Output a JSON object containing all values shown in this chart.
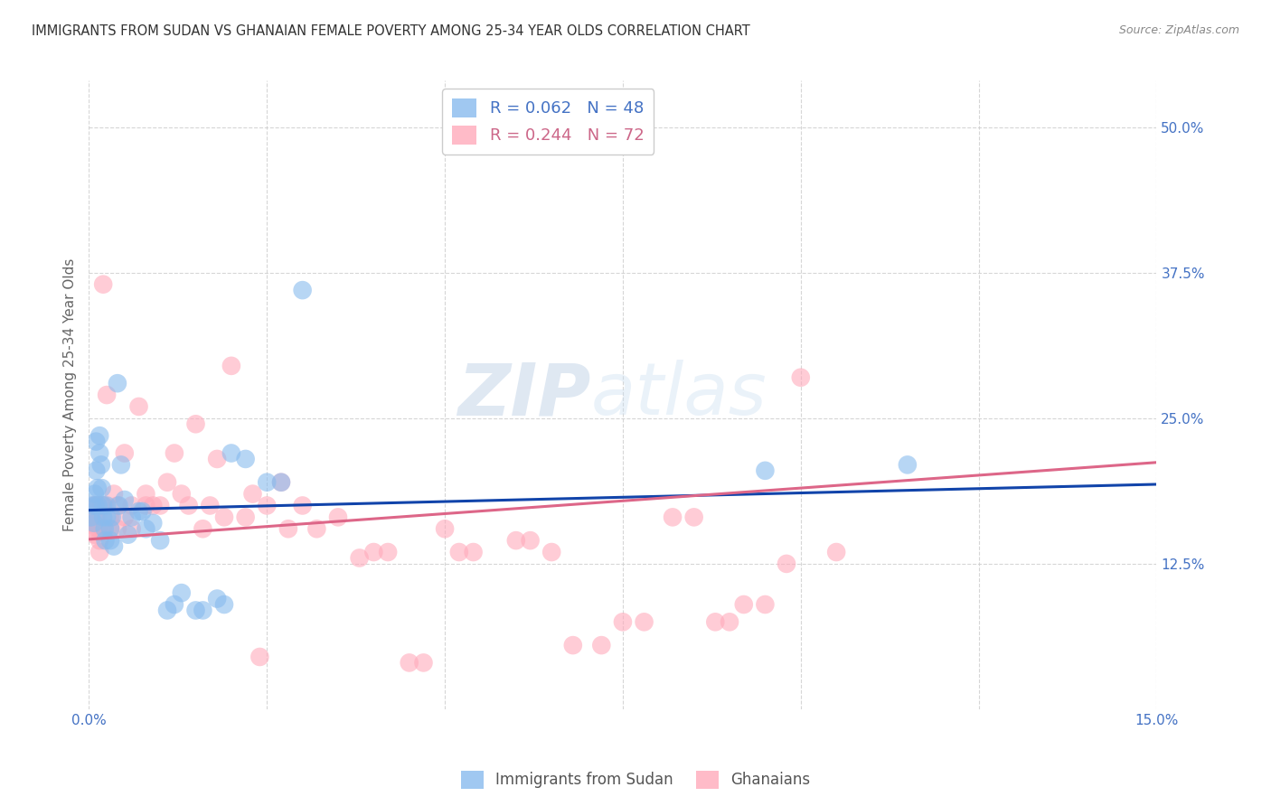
{
  "title": "IMMIGRANTS FROM SUDAN VS GHANAIAN FEMALE POVERTY AMONG 25-34 YEAR OLDS CORRELATION CHART",
  "source": "Source: ZipAtlas.com",
  "ylabel": "Female Poverty Among 25-34 Year Olds",
  "xmin": 0.0,
  "xmax": 0.15,
  "ymin": 0.0,
  "ymax": 0.54,
  "yticks": [
    0.125,
    0.25,
    0.375,
    0.5
  ],
  "ytick_labels": [
    "12.5%",
    "25.0%",
    "37.5%",
    "50.0%"
  ],
  "xtick_show": [
    0.0,
    0.15
  ],
  "xtick_labels_show": [
    "0.0%",
    "15.0%"
  ],
  "series1_name": "Immigrants from Sudan",
  "series2_name": "Ghanaians",
  "series1_color": "#88bbee",
  "series2_color": "#ffaabb",
  "series1_line_color": "#1144aa",
  "series2_line_color": "#dd6688",
  "watermark": "ZIPatlas",
  "background_color": "#ffffff",
  "grid_color": "#cccccc",
  "title_color": "#333333",
  "axis_label_color": "#666666",
  "tick_label_color": "#4472c4",
  "legend_r1": "R = 0.062",
  "legend_n1": "N = 48",
  "legend_r2": "R = 0.244",
  "legend_n2": "N = 72",
  "series1_x": [
    0.0003,
    0.0005,
    0.0007,
    0.0008,
    0.0009,
    0.001,
    0.001,
    0.0012,
    0.0013,
    0.0015,
    0.0015,
    0.0017,
    0.0018,
    0.002,
    0.002,
    0.0022,
    0.0023,
    0.0025,
    0.0025,
    0.003,
    0.003,
    0.0032,
    0.0035,
    0.004,
    0.0042,
    0.0045,
    0.005,
    0.0055,
    0.006,
    0.007,
    0.0075,
    0.008,
    0.009,
    0.01,
    0.011,
    0.012,
    0.013,
    0.015,
    0.016,
    0.018,
    0.019,
    0.02,
    0.022,
    0.025,
    0.027,
    0.03,
    0.095,
    0.115
  ],
  "series1_y": [
    0.165,
    0.175,
    0.16,
    0.185,
    0.175,
    0.23,
    0.205,
    0.19,
    0.175,
    0.235,
    0.22,
    0.21,
    0.19,
    0.165,
    0.175,
    0.155,
    0.145,
    0.165,
    0.175,
    0.145,
    0.155,
    0.165,
    0.14,
    0.28,
    0.175,
    0.21,
    0.18,
    0.15,
    0.165,
    0.17,
    0.17,
    0.155,
    0.16,
    0.145,
    0.085,
    0.09,
    0.1,
    0.085,
    0.085,
    0.095,
    0.09,
    0.22,
    0.215,
    0.195,
    0.195,
    0.36,
    0.205,
    0.21
  ],
  "series2_x": [
    0.0003,
    0.0005,
    0.0007,
    0.0008,
    0.001,
    0.001,
    0.0012,
    0.0013,
    0.0015,
    0.0015,
    0.0018,
    0.002,
    0.002,
    0.0022,
    0.0025,
    0.003,
    0.003,
    0.0035,
    0.004,
    0.004,
    0.005,
    0.005,
    0.006,
    0.006,
    0.007,
    0.008,
    0.008,
    0.009,
    0.01,
    0.011,
    0.012,
    0.013,
    0.014,
    0.015,
    0.016,
    0.017,
    0.018,
    0.019,
    0.02,
    0.022,
    0.023,
    0.024,
    0.025,
    0.027,
    0.028,
    0.03,
    0.032,
    0.035,
    0.038,
    0.04,
    0.042,
    0.045,
    0.047,
    0.05,
    0.052,
    0.054,
    0.06,
    0.062,
    0.065,
    0.068,
    0.072,
    0.075,
    0.078,
    0.082,
    0.085,
    0.088,
    0.09,
    0.092,
    0.095,
    0.098,
    0.1,
    0.105
  ],
  "series2_y": [
    0.16,
    0.155,
    0.175,
    0.15,
    0.175,
    0.165,
    0.165,
    0.155,
    0.145,
    0.135,
    0.175,
    0.365,
    0.155,
    0.175,
    0.27,
    0.155,
    0.165,
    0.185,
    0.155,
    0.175,
    0.22,
    0.165,
    0.155,
    0.175,
    0.26,
    0.185,
    0.175,
    0.175,
    0.175,
    0.195,
    0.22,
    0.185,
    0.175,
    0.245,
    0.155,
    0.175,
    0.215,
    0.165,
    0.295,
    0.165,
    0.185,
    0.045,
    0.175,
    0.195,
    0.155,
    0.175,
    0.155,
    0.165,
    0.13,
    0.135,
    0.135,
    0.04,
    0.04,
    0.155,
    0.135,
    0.135,
    0.145,
    0.145,
    0.135,
    0.055,
    0.055,
    0.075,
    0.075,
    0.165,
    0.165,
    0.075,
    0.075,
    0.09,
    0.09,
    0.125,
    0.285,
    0.135
  ]
}
